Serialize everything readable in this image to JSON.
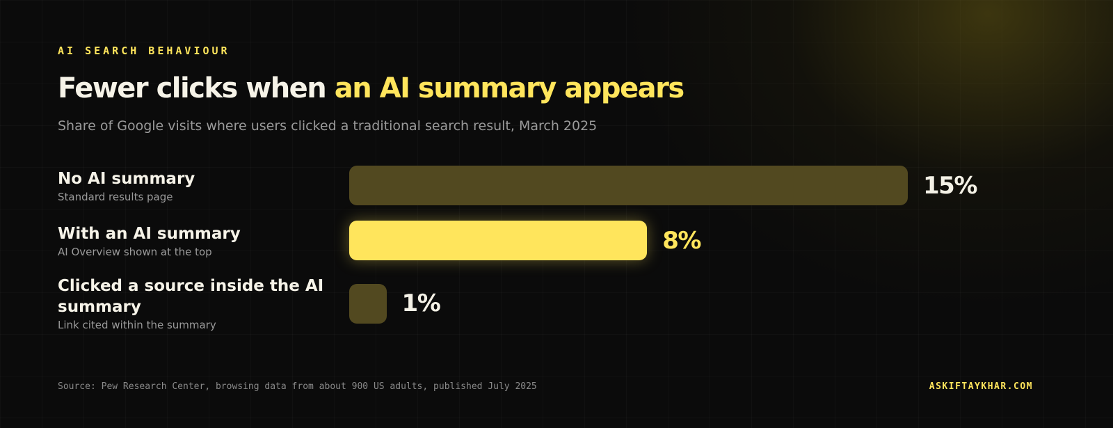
{
  "chart_data": {
    "type": "bar",
    "orientation": "horizontal",
    "kicker": "AI SEARCH BEHAVIOUR",
    "title": "Fewer clicks when",
    "title_highlight": "an AI summary appears",
    "subtitle": "Share of Google visits where users clicked a traditional search result, March 2025",
    "categories": [
      "No AI summary",
      "With an AI summary",
      "Clicked a source inside the AI summary"
    ],
    "sublabels": [
      "Standard results page",
      "AI Overview shown at the top",
      "Link cited within the summary"
    ],
    "values": [
      15,
      8,
      1
    ],
    "value_labels": [
      "15%",
      "8%",
      "1%"
    ],
    "colors": [
      "#524920",
      "#ffe55c",
      "#524920"
    ],
    "value_label_colors": [
      "#f4f1e6",
      "#ffe55c",
      "#f4f1e6"
    ],
    "source": "Source: Pew Research Center, browsing data from about 900 US adults, published July 2025",
    "credit": "ASKIFTAYKHAR.COM"
  }
}
